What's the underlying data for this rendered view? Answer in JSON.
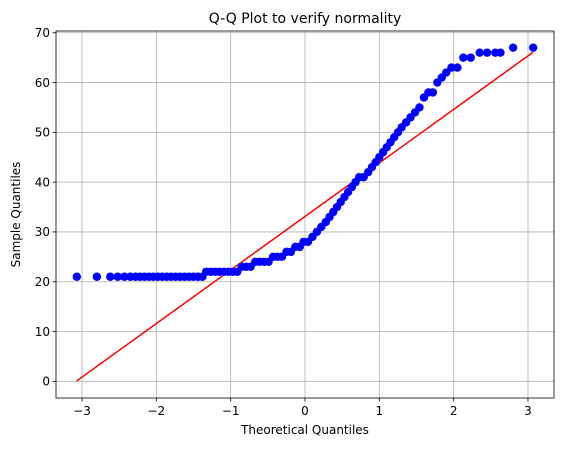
{
  "chart_data": {
    "type": "scatter",
    "title": "Q-Q Plot to verify normality",
    "xlabel": "Theoretical Quantiles",
    "ylabel": "Sample Quantiles",
    "xlim": [
      -3.35,
      3.35
    ],
    "ylim": [
      -3.35,
      70.35
    ],
    "xticks": [
      -3,
      -2,
      -1,
      0,
      1,
      2,
      3
    ],
    "yticks": [
      0,
      10,
      20,
      30,
      40,
      50,
      60,
      70
    ],
    "grid": true,
    "series": [
      {
        "role": "sample",
        "color": "#0000ff",
        "points": [
          [
            -3.07,
            21
          ],
          [
            -2.8,
            21
          ],
          [
            -2.62,
            21
          ],
          [
            -2.52,
            21
          ],
          [
            -2.43,
            21
          ],
          [
            -2.35,
            21
          ],
          [
            -2.28,
            21
          ],
          [
            -2.22,
            21
          ],
          [
            -2.16,
            21
          ],
          [
            -2.1,
            21
          ],
          [
            -2.04,
            21
          ],
          [
            -1.98,
            21
          ],
          [
            -1.92,
            21
          ],
          [
            -1.86,
            21
          ],
          [
            -1.8,
            21
          ],
          [
            -1.74,
            21
          ],
          [
            -1.68,
            21
          ],
          [
            -1.62,
            21
          ],
          [
            -1.56,
            21
          ],
          [
            -1.5,
            21
          ],
          [
            -1.44,
            21
          ],
          [
            -1.38,
            21
          ],
          [
            -1.33,
            22
          ],
          [
            -1.27,
            22
          ],
          [
            -1.21,
            22
          ],
          [
            -1.15,
            22
          ],
          [
            -1.09,
            22
          ],
          [
            -1.03,
            22
          ],
          [
            -0.97,
            22
          ],
          [
            -0.91,
            22
          ],
          [
            -0.85,
            23
          ],
          [
            -0.79,
            23
          ],
          [
            -0.73,
            23
          ],
          [
            -0.67,
            24
          ],
          [
            -0.61,
            24
          ],
          [
            -0.55,
            24
          ],
          [
            -0.49,
            24
          ],
          [
            -0.43,
            25
          ],
          [
            -0.37,
            25
          ],
          [
            -0.31,
            25
          ],
          [
            -0.25,
            26
          ],
          [
            -0.19,
            26
          ],
          [
            -0.13,
            27
          ],
          [
            -0.07,
            27
          ],
          [
            -0.02,
            28
          ],
          [
            0.04,
            28
          ],
          [
            0.1,
            29
          ],
          [
            0.16,
            30
          ],
          [
            0.22,
            31
          ],
          [
            0.28,
            32
          ],
          [
            0.33,
            33
          ],
          [
            0.38,
            34
          ],
          [
            0.43,
            35
          ],
          [
            0.48,
            36
          ],
          [
            0.53,
            37
          ],
          [
            0.58,
            38
          ],
          [
            0.63,
            39
          ],
          [
            0.68,
            40
          ],
          [
            0.73,
            41
          ],
          [
            0.79,
            41
          ],
          [
            0.85,
            42
          ],
          [
            0.9,
            43
          ],
          [
            0.95,
            44
          ],
          [
            1.0,
            45
          ],
          [
            1.05,
            46
          ],
          [
            1.1,
            47
          ],
          [
            1.15,
            48
          ],
          [
            1.2,
            49
          ],
          [
            1.25,
            50
          ],
          [
            1.3,
            51
          ],
          [
            1.36,
            52
          ],
          [
            1.42,
            53
          ],
          [
            1.48,
            54
          ],
          [
            1.54,
            55
          ],
          [
            1.6,
            57
          ],
          [
            1.66,
            58
          ],
          [
            1.72,
            58
          ],
          [
            1.78,
            60
          ],
          [
            1.84,
            61
          ],
          [
            1.9,
            62
          ],
          [
            1.97,
            63
          ],
          [
            2.05,
            63
          ],
          [
            2.13,
            65
          ],
          [
            2.23,
            65
          ],
          [
            2.35,
            66
          ],
          [
            2.45,
            66
          ],
          [
            2.56,
            66
          ],
          [
            2.63,
            66
          ],
          [
            2.8,
            67
          ],
          [
            3.07,
            67
          ]
        ]
      },
      {
        "role": "reference-line",
        "color": "#ff0000",
        "points": [
          [
            -3.07,
            0.1
          ],
          [
            3.07,
            66.1
          ]
        ]
      }
    ]
  }
}
